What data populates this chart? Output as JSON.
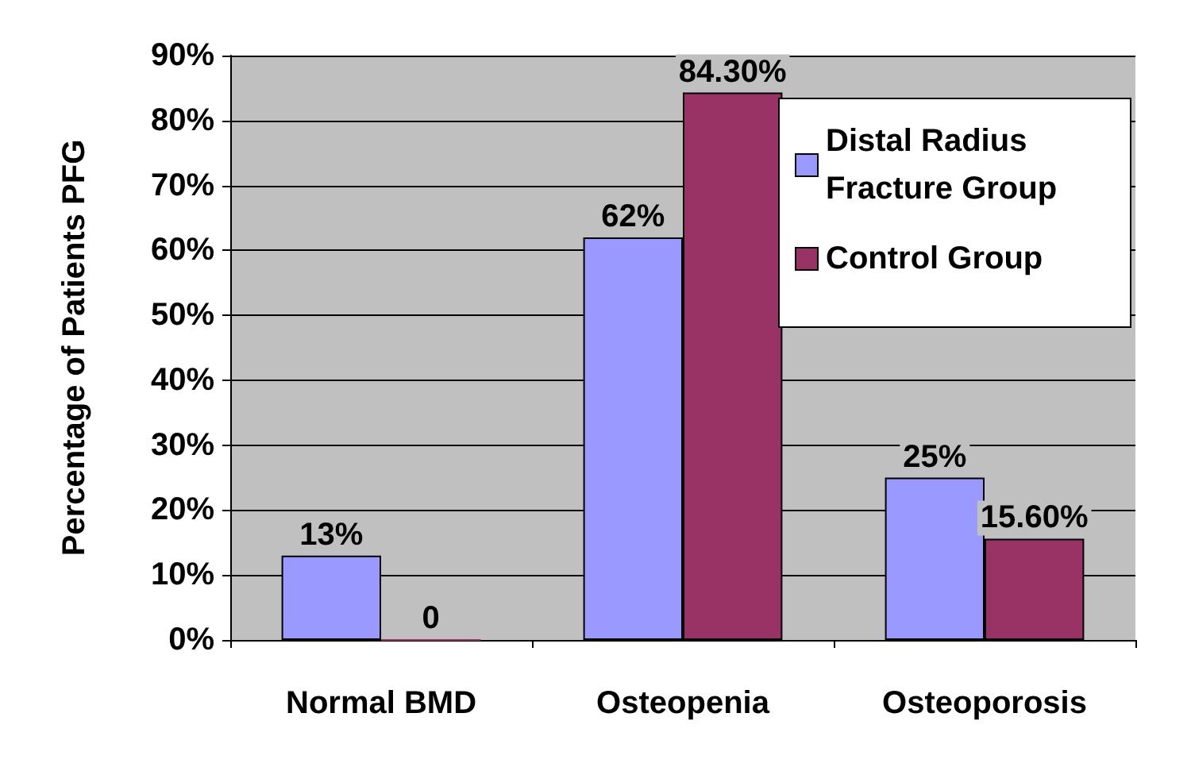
{
  "chart_data": {
    "type": "bar",
    "ylabel": "Percentage of Patients PFG",
    "categories": [
      "Normal BMD",
      "Osteopenia",
      "Osteoporosis"
    ],
    "series": [
      {
        "name": "Distal Radius Fracture Group",
        "color": "#9999ff",
        "values": [
          13,
          62,
          25
        ],
        "value_labels": [
          "13%",
          "62%",
          "25%"
        ]
      },
      {
        "name": "Control Group",
        "color": "#993366",
        "values": [
          0,
          84.3,
          15.6
        ],
        "value_labels": [
          "0",
          "84.30%",
          "15.60%"
        ]
      }
    ],
    "ylim": [
      0,
      90
    ],
    "yticks": [
      {
        "value": 0,
        "label": "0%"
      },
      {
        "value": 10,
        "label": "10%"
      },
      {
        "value": 20,
        "label": "20%"
      },
      {
        "value": 30,
        "label": "30%"
      },
      {
        "value": 40,
        "label": "40%"
      },
      {
        "value": 50,
        "label": "50%"
      },
      {
        "value": 60,
        "label": "60%"
      },
      {
        "value": 70,
        "label": "70%"
      },
      {
        "value": 80,
        "label": "80%"
      },
      {
        "value": 90,
        "label": "90%"
      }
    ],
    "grid": "y",
    "legend": "top right"
  }
}
